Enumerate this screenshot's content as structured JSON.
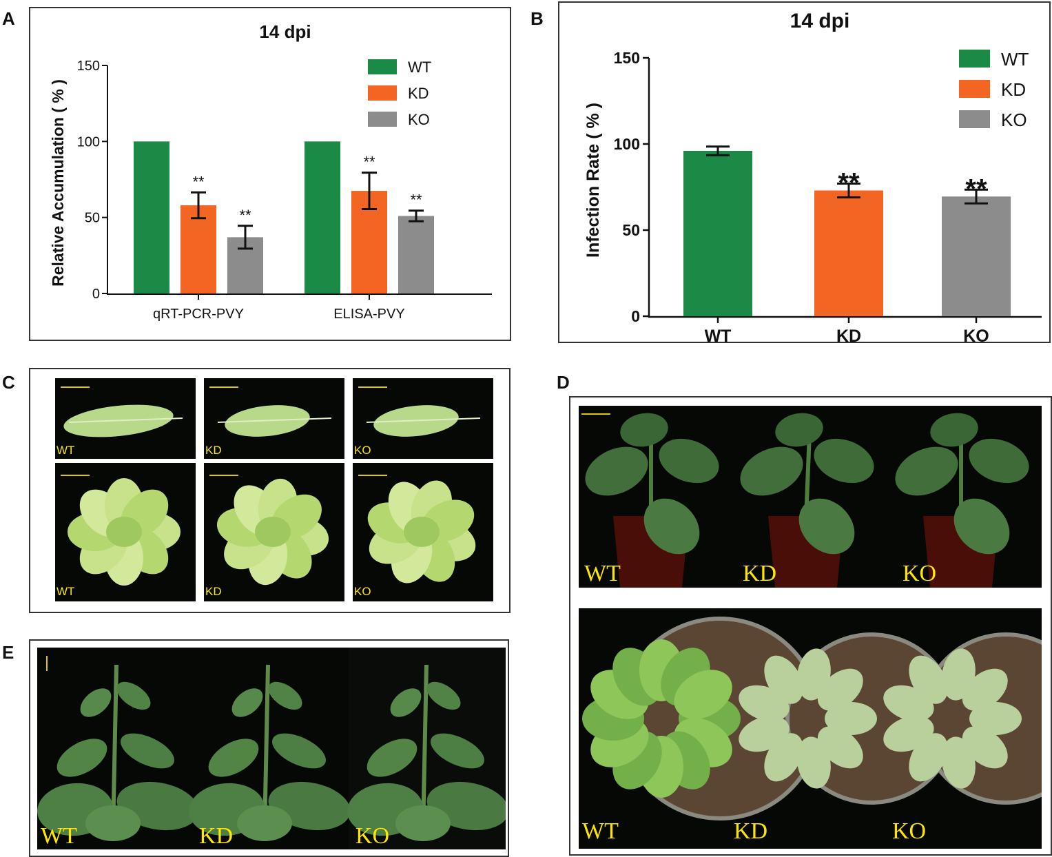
{
  "panels": {
    "A": "A",
    "B": "B",
    "C": "C",
    "D": "D",
    "E": "E"
  },
  "chart_data": [
    {
      "type": "bar",
      "title": "14 dpi",
      "ylabel": "Relative Accumulation ( % )",
      "xlabel": "",
      "categories": [
        "qRT-PCR-PVY",
        "ELISA-PVY"
      ],
      "ylim": [
        0,
        150
      ],
      "yticks": [
        0,
        50,
        100,
        150
      ],
      "series": [
        {
          "name": "WT",
          "color": "#1a8a46",
          "values": [
            100,
            100
          ],
          "errors": [
            0,
            0
          ],
          "sig": [
            "",
            ""
          ]
        },
        {
          "name": "KD",
          "color": "#f26522",
          "values": [
            58,
            67.5
          ],
          "errors": [
            8.5,
            12
          ],
          "sig": [
            "**",
            "**"
          ]
        },
        {
          "name": "KO",
          "color": "#8c8c8c",
          "values": [
            37,
            51
          ],
          "errors": [
            7.5,
            3.5
          ],
          "sig": [
            "**",
            "**"
          ]
        }
      ],
      "legend": "top-right"
    },
    {
      "type": "bar",
      "title": "14 dpi",
      "ylabel": "Infection Rate ( % )",
      "xlabel": "",
      "categories": [
        "WT",
        "KD",
        "KO"
      ],
      "ylim": [
        0,
        150
      ],
      "yticks": [
        0,
        50,
        100,
        150
      ],
      "values": [
        96,
        73,
        69.5
      ],
      "errors": [
        2.5,
        4,
        4
      ],
      "sig": [
        "",
        "**",
        "**"
      ],
      "colors": [
        "#1a8a46",
        "#f26522",
        "#8c8c8c"
      ],
      "legend_entries": [
        {
          "name": "WT",
          "color": "#1a8a46"
        },
        {
          "name": "KD",
          "color": "#f26522"
        },
        {
          "name": "KO",
          "color": "#8c8c8c"
        }
      ],
      "legend": "top-right"
    }
  ],
  "photos": {
    "C_leaf_labels": [
      "WT",
      "KD",
      "KO"
    ],
    "C_plant_labels": [
      "WT",
      "KD",
      "KO"
    ],
    "D_side_labels": [
      "WT",
      "KD",
      "KO"
    ],
    "D_top_labels": [
      "WT",
      "KD",
      "KO"
    ],
    "E_labels": [
      "WT",
      "KD",
      "KO"
    ]
  }
}
